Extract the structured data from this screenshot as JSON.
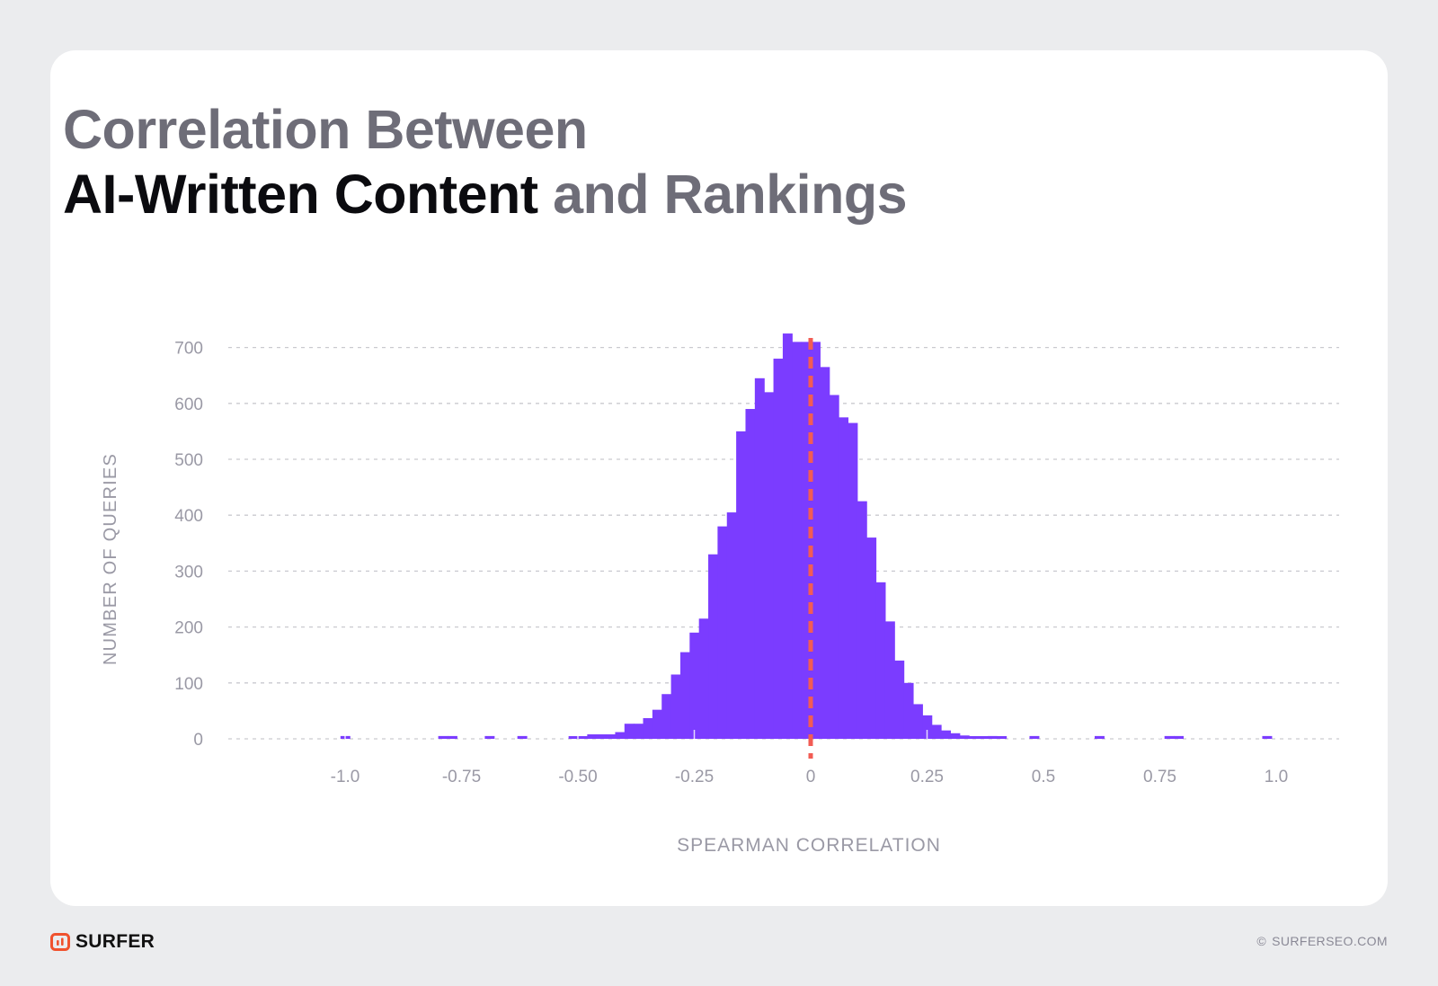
{
  "title": {
    "line1": "Correlation Between",
    "line2_strong": "AI-Written Content",
    "line2_rest": "and Rankings"
  },
  "footer": {
    "brand": "SURFER",
    "copyright_symbol": "©",
    "site": "SURFERSEO.COM"
  },
  "colors": {
    "bars": "#7b3cff",
    "reference_line": "#f25c54",
    "grid": "#c9c9cf",
    "axis_text": "#8f8e9a",
    "brand_logo": "#f0522e"
  },
  "icons": [
    "surfer-logo-icon"
  ],
  "chart_data": {
    "type": "bar",
    "xlabel": "SPEARMAN CORRELATION",
    "ylabel": "NUMBER OF QUERIES",
    "xlim": [
      -1.25,
      1.15
    ],
    "ylim": [
      0,
      700
    ],
    "x_ticks": [
      -1.0,
      -0.75,
      -0.5,
      -0.25,
      0,
      0.25,
      0.5,
      0.75,
      1.0
    ],
    "x_tick_labels": [
      "-1.0",
      "-0.75",
      "-0.50",
      "-0.25",
      "0",
      "0.25",
      "0.5",
      "0.75",
      "1.0"
    ],
    "y_ticks": [
      0,
      100,
      200,
      300,
      400,
      500,
      600,
      700
    ],
    "y_tick_labels": [
      "0",
      "100",
      "200",
      "300",
      "400",
      "500",
      "600",
      "700"
    ],
    "grid": true,
    "reference_line_x": 0,
    "bin_width": 0.02,
    "bins": [
      {
        "x": -1.0,
        "y": 5
      },
      {
        "x": -0.79,
        "y": 5
      },
      {
        "x": -0.77,
        "y": 5
      },
      {
        "x": -0.69,
        "y": 5
      },
      {
        "x": -0.62,
        "y": 5
      },
      {
        "x": -0.51,
        "y": 3
      },
      {
        "x": -0.49,
        "y": 2
      },
      {
        "x": -0.47,
        "y": 8
      },
      {
        "x": -0.45,
        "y": 8
      },
      {
        "x": -0.43,
        "y": 8
      },
      {
        "x": -0.41,
        "y": 12
      },
      {
        "x": -0.39,
        "y": 27
      },
      {
        "x": -0.37,
        "y": 27
      },
      {
        "x": -0.35,
        "y": 37
      },
      {
        "x": -0.33,
        "y": 52
      },
      {
        "x": -0.31,
        "y": 80
      },
      {
        "x": -0.29,
        "y": 115
      },
      {
        "x": -0.27,
        "y": 155
      },
      {
        "x": -0.25,
        "y": 190
      },
      {
        "x": -0.23,
        "y": 215
      },
      {
        "x": -0.21,
        "y": 330
      },
      {
        "x": -0.19,
        "y": 380
      },
      {
        "x": -0.17,
        "y": 405
      },
      {
        "x": -0.15,
        "y": 550
      },
      {
        "x": -0.13,
        "y": 590
      },
      {
        "x": -0.11,
        "y": 645
      },
      {
        "x": -0.09,
        "y": 620
      },
      {
        "x": -0.07,
        "y": 680
      },
      {
        "x": -0.05,
        "y": 725
      },
      {
        "x": -0.03,
        "y": 710
      },
      {
        "x": -0.01,
        "y": 710
      },
      {
        "x": 0.01,
        "y": 710
      },
      {
        "x": 0.03,
        "y": 665
      },
      {
        "x": 0.05,
        "y": 615
      },
      {
        "x": 0.07,
        "y": 575
      },
      {
        "x": 0.09,
        "y": 565
      },
      {
        "x": 0.11,
        "y": 425
      },
      {
        "x": 0.13,
        "y": 360
      },
      {
        "x": 0.15,
        "y": 280
      },
      {
        "x": 0.17,
        "y": 210
      },
      {
        "x": 0.19,
        "y": 140
      },
      {
        "x": 0.21,
        "y": 100
      },
      {
        "x": 0.23,
        "y": 62
      },
      {
        "x": 0.25,
        "y": 42
      },
      {
        "x": 0.27,
        "y": 25
      },
      {
        "x": 0.29,
        "y": 15
      },
      {
        "x": 0.31,
        "y": 10
      },
      {
        "x": 0.33,
        "y": 6
      },
      {
        "x": 0.35,
        "y": 4
      },
      {
        "x": 0.37,
        "y": 4
      },
      {
        "x": 0.39,
        "y": 5
      },
      {
        "x": 0.41,
        "y": 3
      },
      {
        "x": 0.48,
        "y": 5
      },
      {
        "x": 0.62,
        "y": 5
      },
      {
        "x": 0.77,
        "y": 5
      },
      {
        "x": 0.79,
        "y": 5
      },
      {
        "x": 0.98,
        "y": 5
      }
    ]
  }
}
